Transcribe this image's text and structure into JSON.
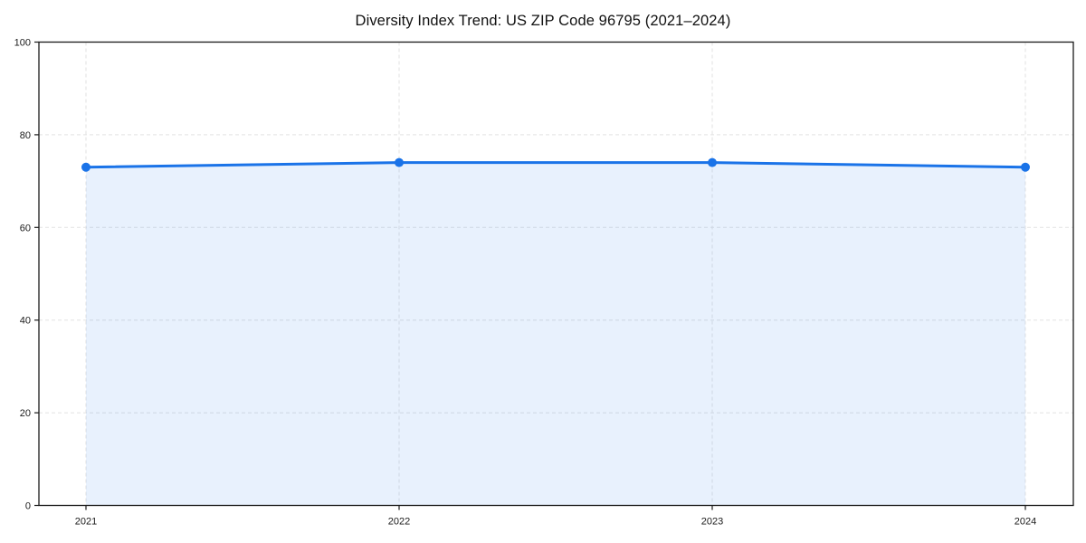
{
  "chart_data": {
    "type": "line",
    "title": "Diversity Index Trend: US ZIP Code 96795 (2021–2024)",
    "x": [
      2021,
      2022,
      2023,
      2024
    ],
    "xtick_labels": [
      "2021",
      "2022",
      "2023",
      "2024"
    ],
    "series": [
      {
        "name": "Diversity Index",
        "values": [
          73,
          74,
          74,
          73
        ]
      }
    ],
    "xlabel": "",
    "ylabel": "",
    "ylim": [
      0,
      100
    ],
    "yticks": [
      0,
      20,
      40,
      60,
      80,
      100
    ],
    "grid": true,
    "grid_style": "dashed",
    "area_fill": true,
    "legend_position": "none",
    "colors": {
      "line": "#1a73e8",
      "marker": "#1a73e8",
      "fill": "rgba(26,115,232,0.10)",
      "grid": "#e2e2e2",
      "spine": "#1a1a1a",
      "tick_text": "#1a1a1a",
      "background": "#ffffff"
    }
  }
}
